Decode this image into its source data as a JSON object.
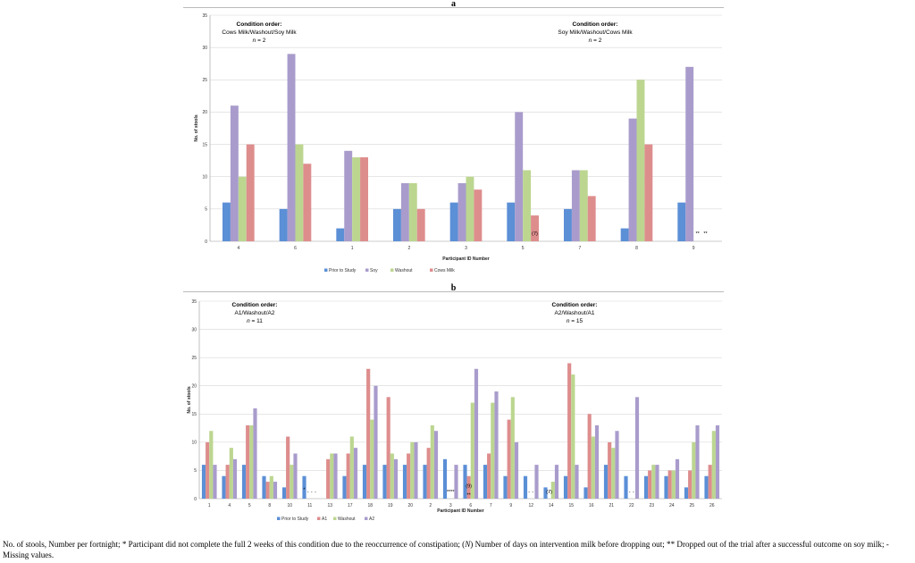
{
  "colors": {
    "prior": "#5b8fd6",
    "second": "#a99ccc",
    "washout": "#bcd690",
    "fourth": "#de8d8d",
    "grid": "#d8d8d8",
    "axis": "#999999"
  },
  "caption": {
    "t1": "No. of stools, Number per fortnight; * Participant did not complete the full 2 weeks of this condition due to the reoccurrence of constipation; (",
    "t2": "N",
    "t3": ") Number of days on intervention milk before dropping out; ** Dropped out of the trial after a successful outcome on soy milk; - Missing values."
  },
  "chart_data": [
    {
      "type": "bar",
      "panel": "a",
      "title": "a",
      "xlabel": "Participant ID Number",
      "ylabel": "No. of stools",
      "ylim": [
        0,
        35
      ],
      "yticks": [
        0,
        5,
        10,
        15,
        20,
        25,
        30,
        35
      ],
      "grid": true,
      "legend": "bottom",
      "categories": [
        "4",
        "6",
        "1",
        "2",
        "3",
        "5",
        "7",
        "8",
        "9"
      ],
      "series": [
        {
          "name": "Prior to Study",
          "color": "#5b8fd6",
          "values": [
            6,
            5,
            2,
            5,
            6,
            6,
            5,
            2,
            6
          ]
        },
        {
          "name": "Soy",
          "color": "#a99ccc",
          "values": [
            21,
            29,
            14,
            9,
            9,
            20,
            11,
            19,
            27
          ]
        },
        {
          "name": "Washout",
          "color": "#bcd690",
          "values": [
            10,
            15,
            13,
            9,
            10,
            11,
            11,
            25,
            null
          ]
        },
        {
          "name": "Cows Milk",
          "color": "#de8d8d",
          "values": [
            15,
            12,
            13,
            5,
            8,
            4,
            7,
            15,
            null
          ]
        }
      ],
      "annotations": [
        {
          "text": "(7)",
          "category": "5",
          "series": "Cows Milk",
          "y": 1.2
        },
        {
          "text": "**",
          "category": "9",
          "series": "Washout",
          "y": 1.2
        },
        {
          "text": "**",
          "category": "9",
          "series": "Cows Milk",
          "y": 1.2
        }
      ],
      "groups": [
        {
          "head": "Condition order:",
          "order": "Cows Milk/Washout/Soy Milk",
          "n_label": "n",
          "n_value": " = 2"
        },
        {
          "head": "Condition order:",
          "order": "Soy Milk/Washout/Cows Milk",
          "n_label": "n",
          "n_value": " = 2"
        }
      ]
    },
    {
      "type": "bar",
      "panel": "b",
      "title": "b",
      "xlabel": "Participant ID Number",
      "ylabel": "No. of stools",
      "ylim": [
        0,
        35
      ],
      "yticks": [
        0,
        5,
        10,
        15,
        20,
        25,
        30,
        35
      ],
      "grid": true,
      "legend": "bottom",
      "categories": [
        "1",
        "4",
        "5",
        "8",
        "10",
        "11",
        "13",
        "17",
        "18",
        "19",
        "20",
        "2",
        "3",
        "6",
        "7",
        "9",
        "12",
        "14",
        "15",
        "16",
        "21",
        "22",
        "23",
        "24",
        "25",
        "26"
      ],
      "series": [
        {
          "name": "Prior to Study",
          "color": "#5b8fd6",
          "values": [
            6,
            4,
            6,
            4,
            2,
            4,
            null,
            4,
            6,
            6,
            6,
            6,
            7,
            6,
            6,
            4,
            4,
            2,
            4,
            2,
            6,
            4,
            4,
            4,
            2,
            4
          ]
        },
        {
          "name": "A1",
          "color": "#de8d8d",
          "values": [
            10,
            6,
            13,
            3,
            11,
            null,
            7,
            8,
            23,
            18,
            8,
            9,
            null,
            4,
            8,
            14,
            null,
            null,
            24,
            15,
            10,
            null,
            5,
            5,
            5,
            6
          ]
        },
        {
          "name": "Washout",
          "color": "#bcd690",
          "values": [
            12,
            9,
            13,
            4,
            6,
            null,
            8,
            11,
            14,
            8,
            10,
            13,
            null,
            17,
            17,
            18,
            null,
            3,
            22,
            11,
            9,
            null,
            6,
            5,
            10,
            12
          ]
        },
        {
          "name": "A2",
          "color": "#a99ccc",
          "values": [
            6,
            7,
            16,
            3,
            8,
            null,
            8,
            9,
            20,
            7,
            10,
            12,
            6,
            23,
            19,
            10,
            6,
            6,
            6,
            13,
            12,
            18,
            6,
            7,
            13,
            13
          ]
        }
      ],
      "annotations": [
        {
          "text": "-",
          "category": "11",
          "series": "A1",
          "y": 1.2
        },
        {
          "text": "-",
          "category": "11",
          "series": "Washout",
          "y": 1.2
        },
        {
          "text": "-",
          "category": "11",
          "series": "A2",
          "y": 1.2
        },
        {
          "text": "*",
          "category": "11",
          "series": "Prior to Study",
          "y": 1.6
        },
        {
          "text": "**",
          "category": "3",
          "series": "A1",
          "y": 1.2
        },
        {
          "text": "**",
          "category": "3",
          "series": "Washout",
          "y": 1.2
        },
        {
          "text": "(9)",
          "category": "6",
          "series": "A1",
          "y": 2.2
        },
        {
          "text": "**",
          "category": "6",
          "series": "A1",
          "y": 0.6
        },
        {
          "text": "-",
          "category": "12",
          "series": "A1",
          "y": 1.2
        },
        {
          "text": "-",
          "category": "12",
          "series": "Washout",
          "y": 1.2
        },
        {
          "text": "(7)",
          "category": "14",
          "series": "A1",
          "y": 1.2
        },
        {
          "text": "-",
          "category": "14",
          "series": "A1",
          "y": 1.2
        },
        {
          "text": "-",
          "category": "22",
          "series": "A1",
          "y": 1.2
        },
        {
          "text": "-",
          "category": "22",
          "series": "Washout",
          "y": 1.2
        }
      ],
      "groups": [
        {
          "head": "Condition order:",
          "order": "A1/Washout/A2",
          "n_label": "n",
          "n_value": " = 11"
        },
        {
          "head": "Condition order:",
          "order": "A2/Washout/A1",
          "n_label": "n",
          "n_value": " = 15"
        }
      ]
    }
  ]
}
